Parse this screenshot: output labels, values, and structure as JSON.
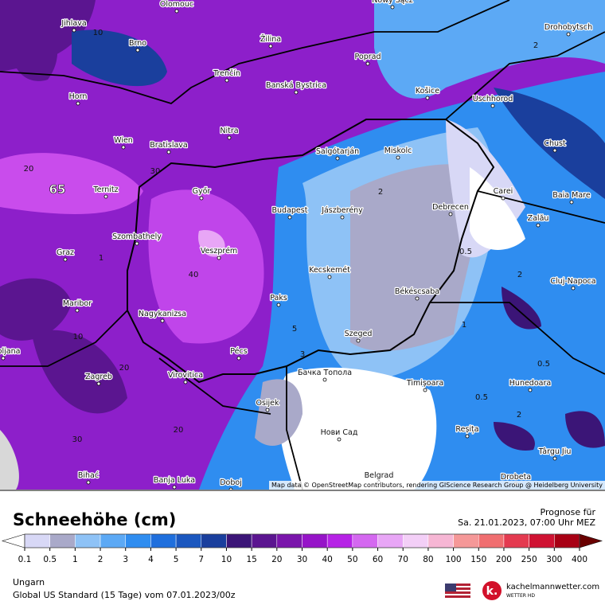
{
  "map": {
    "cities": [
      "Olomouc",
      "Jihlava",
      "Brno",
      "Žilina",
      "Poprad",
      "Nowy Sącz",
      "Drohobytsch",
      "Trenčín",
      "Banská Bystrica",
      "Košice",
      "Uschhorod",
      "Horn",
      "Nitra",
      "Wien",
      "Bratislava",
      "Salgótarján",
      "Miskolc",
      "Chust",
      "Ternitz",
      "Győr",
      "Budapest",
      "Jászberény",
      "Debrecen",
      "Carei",
      "Baia Mare",
      "Szombathely",
      "Zalău",
      "Graz",
      "Veszprém",
      "Kecskemét",
      "Cluj-Napoca",
      "Békéscsaba",
      "Paks",
      "Maribor",
      "Nagykanizsa",
      "Szeged",
      "Pécs",
      "Ljubljana",
      "Бачка Топола",
      "Zagreb",
      "Virovitica",
      "Timișoara",
      "Hunedoara",
      "Osijek",
      "Нови Сад",
      "Reșița",
      "Târgu Jiu",
      "Bihać",
      "Banja Luka",
      "Doboj",
      "Belgrad",
      "Drobeta"
    ],
    "contour_labels": [
      "65",
      "40",
      "30",
      "20",
      "10",
      "5",
      "3",
      "2",
      "0.5",
      "1",
      "0.5",
      "0.5",
      "2",
      "2",
      "2",
      "1",
      "10",
      "20",
      "30",
      "20"
    ],
    "attribution": "Map data © OpenStreetMap contributors, rendering GIScience Research Group @ Heidelberg University"
  },
  "legend": {
    "title": "Schneehöhe (cm)",
    "forecast_label": "Prognose für",
    "forecast_time": "Sa. 21.01.2023, 07:00 Uhr MEZ",
    "levels": [
      "0.1",
      "0.5",
      "1",
      "2",
      "3",
      "4",
      "5",
      "7",
      "10",
      "15",
      "20",
      "30",
      "40",
      "50",
      "60",
      "70",
      "80",
      "100",
      "150",
      "200",
      "250",
      "300",
      "400"
    ],
    "colors": [
      "#d8d8f6",
      "#a9a9c9",
      "#8ec2f6",
      "#5ca9f5",
      "#2f8df0",
      "#1f6fdd",
      "#1b57bf",
      "#1a3f9d",
      "#3b1577",
      "#5b1590",
      "#7a15ab",
      "#9614c8",
      "#b622e6",
      "#d468f0",
      "#e8a6f6",
      "#f3cff7",
      "#f6b6d4",
      "#f59898",
      "#f06e70",
      "#e43a50",
      "#cf1232",
      "#a80014"
    ],
    "under_color": "#ffffff",
    "over_color": "#6a0000"
  },
  "footer": {
    "region": "Ungarn",
    "model": "Global US Standard (15 Tage) vom 07.01.2023/00z",
    "brand": "kachelmannwetter.com",
    "brand_sub": "WETTER HD"
  }
}
